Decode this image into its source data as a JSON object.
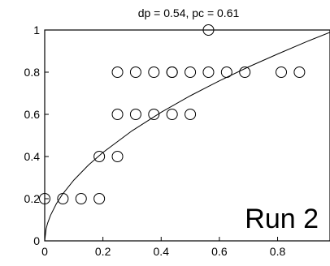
{
  "chart_data": {
    "type": "scatter",
    "title": "dp = 0.54, pc = 0.61",
    "annotation": "Run 2",
    "xlabel": "",
    "ylabel": "",
    "xlim": [
      0,
      0.98
    ],
    "ylim": [
      0,
      1
    ],
    "x_ticks": [
      0,
      0.2,
      0.4,
      0.6,
      0.8
    ],
    "x_tick_labels": [
      "0",
      "0.2",
      "0.4",
      "0.6",
      "0.8"
    ],
    "y_ticks": [
      0,
      0.2,
      0.4,
      0.6,
      0.8,
      1
    ],
    "y_tick_labels": [
      "0",
      "0.2",
      "0.4",
      "0.6",
      "0.8",
      "1"
    ],
    "grid": false,
    "points": [
      {
        "x": 0.0,
        "y": 0.2
      },
      {
        "x": 0.0625,
        "y": 0.2
      },
      {
        "x": 0.125,
        "y": 0.2
      },
      {
        "x": 0.1875,
        "y": 0.2
      },
      {
        "x": 0.1875,
        "y": 0.4
      },
      {
        "x": 0.25,
        "y": 0.4
      },
      {
        "x": 0.25,
        "y": 0.6
      },
      {
        "x": 0.3125,
        "y": 0.6
      },
      {
        "x": 0.375,
        "y": 0.6
      },
      {
        "x": 0.4375,
        "y": 0.6
      },
      {
        "x": 0.5,
        "y": 0.6
      },
      {
        "x": 0.25,
        "y": 0.8
      },
      {
        "x": 0.3125,
        "y": 0.8
      },
      {
        "x": 0.375,
        "y": 0.8
      },
      {
        "x": 0.4375,
        "y": 0.8
      },
      {
        "x": 0.4375,
        "y": 0.8
      },
      {
        "x": 0.5,
        "y": 0.8
      },
      {
        "x": 0.5625,
        "y": 0.8
      },
      {
        "x": 0.625,
        "y": 0.8
      },
      {
        "x": 0.6875,
        "y": 0.8
      },
      {
        "x": 0.8125,
        "y": 0.8
      },
      {
        "x": 0.875,
        "y": 0.8
      },
      {
        "x": 0.5625,
        "y": 1.0
      }
    ],
    "fit_curve": {
      "exponent": 0.54,
      "x": [
        0,
        0.005,
        0.01,
        0.02,
        0.04,
        0.06,
        0.1,
        0.15,
        0.2,
        0.3,
        0.4,
        0.5,
        0.6,
        0.7,
        0.8,
        0.9,
        0.98
      ],
      "y": [
        0,
        0.058,
        0.084,
        0.121,
        0.176,
        0.219,
        0.288,
        0.359,
        0.419,
        0.522,
        0.61,
        0.688,
        0.759,
        0.825,
        0.886,
        0.945,
        0.989
      ]
    }
  }
}
